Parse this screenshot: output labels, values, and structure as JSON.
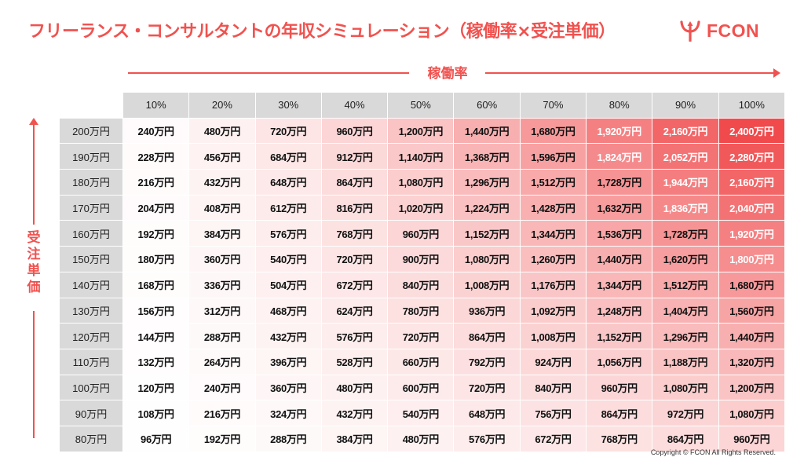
{
  "title": "フリーランス・コンサルタントの年収シミュレーション（稼働率×受注単価）",
  "logo": {
    "text": "FCON",
    "icon": "trident-icon",
    "color": "#f0524f"
  },
  "x_axis_label": "稼働率",
  "y_axis_label": [
    "受",
    "注",
    "単",
    "価"
  ],
  "columns": [
    "10%",
    "20%",
    "30%",
    "40%",
    "50%",
    "60%",
    "70%",
    "80%",
    "90%",
    "100%"
  ],
  "rows": [
    {
      "label": "200万円",
      "values": [
        "240万円",
        "480万円",
        "720万円",
        "960万円",
        "1,200万円",
        "1,440万円",
        "1,680万円",
        "1,920万円",
        "2,160万円",
        "2,400万円"
      ]
    },
    {
      "label": "190万円",
      "values": [
        "228万円",
        "456万円",
        "684万円",
        "912万円",
        "1,140万円",
        "1,368万円",
        "1,596万円",
        "1,824万円",
        "2,052万円",
        "2,280万円"
      ]
    },
    {
      "label": "180万円",
      "values": [
        "216万円",
        "432万円",
        "648万円",
        "864万円",
        "1,080万円",
        "1,296万円",
        "1,512万円",
        "1,728万円",
        "1,944万円",
        "2,160万円"
      ]
    },
    {
      "label": "170万円",
      "values": [
        "204万円",
        "408万円",
        "612万円",
        "816万円",
        "1,020万円",
        "1,224万円",
        "1,428万円",
        "1,632万円",
        "1,836万円",
        "2,040万円"
      ]
    },
    {
      "label": "160万円",
      "values": [
        "192万円",
        "384万円",
        "576万円",
        "768万円",
        "960万円",
        "1,152万円",
        "1,344万円",
        "1,536万円",
        "1,728万円",
        "1,920万円"
      ]
    },
    {
      "label": "150万円",
      "values": [
        "180万円",
        "360万円",
        "540万円",
        "720万円",
        "900万円",
        "1,080万円",
        "1,260万円",
        "1,440万円",
        "1,620万円",
        "1,800万円"
      ]
    },
    {
      "label": "140万円",
      "values": [
        "168万円",
        "336万円",
        "504万円",
        "672万円",
        "840万円",
        "1,008万円",
        "1,176万円",
        "1,344万円",
        "1,512万円",
        "1,680万円"
      ]
    },
    {
      "label": "130万円",
      "values": [
        "156万円",
        "312万円",
        "468万円",
        "624万円",
        "780万円",
        "936万円",
        "1,092万円",
        "1,248万円",
        "1,404万円",
        "1,560万円"
      ]
    },
    {
      "label": "120万円",
      "values": [
        "144万円",
        "288万円",
        "432万円",
        "576万円",
        "720万円",
        "864万円",
        "1,008万円",
        "1,152万円",
        "1,296万円",
        "1,440万円"
      ]
    },
    {
      "label": "110万円",
      "values": [
        "132万円",
        "264万円",
        "396万円",
        "528万円",
        "660万円",
        "792万円",
        "924万円",
        "1,056万円",
        "1,188万円",
        "1,320万円"
      ]
    },
    {
      "label": "100万円",
      "values": [
        "120万円",
        "240万円",
        "360万円",
        "480万円",
        "600万円",
        "720万円",
        "840万円",
        "960万円",
        "1,080万円",
        "1,200万円"
      ]
    },
    {
      "label": "90万円",
      "values": [
        "108万円",
        "216万円",
        "324万円",
        "432万円",
        "540万円",
        "648万円",
        "756万円",
        "864万円",
        "972万円",
        "1,080万円"
      ]
    },
    {
      "label": "80万円",
      "values": [
        "96万円",
        "192万円",
        "288万円",
        "384万円",
        "480万円",
        "576万円",
        "672万円",
        "768万円",
        "864万円",
        "960万円"
      ]
    }
  ],
  "colors": {
    "accent": "#f0524f",
    "header_bg": "#d9d9d9",
    "heat_low": "#ffffff",
    "heat_high": "#f04a4c"
  },
  "copyright": "Copyright © FCON All Rights Reserved."
}
